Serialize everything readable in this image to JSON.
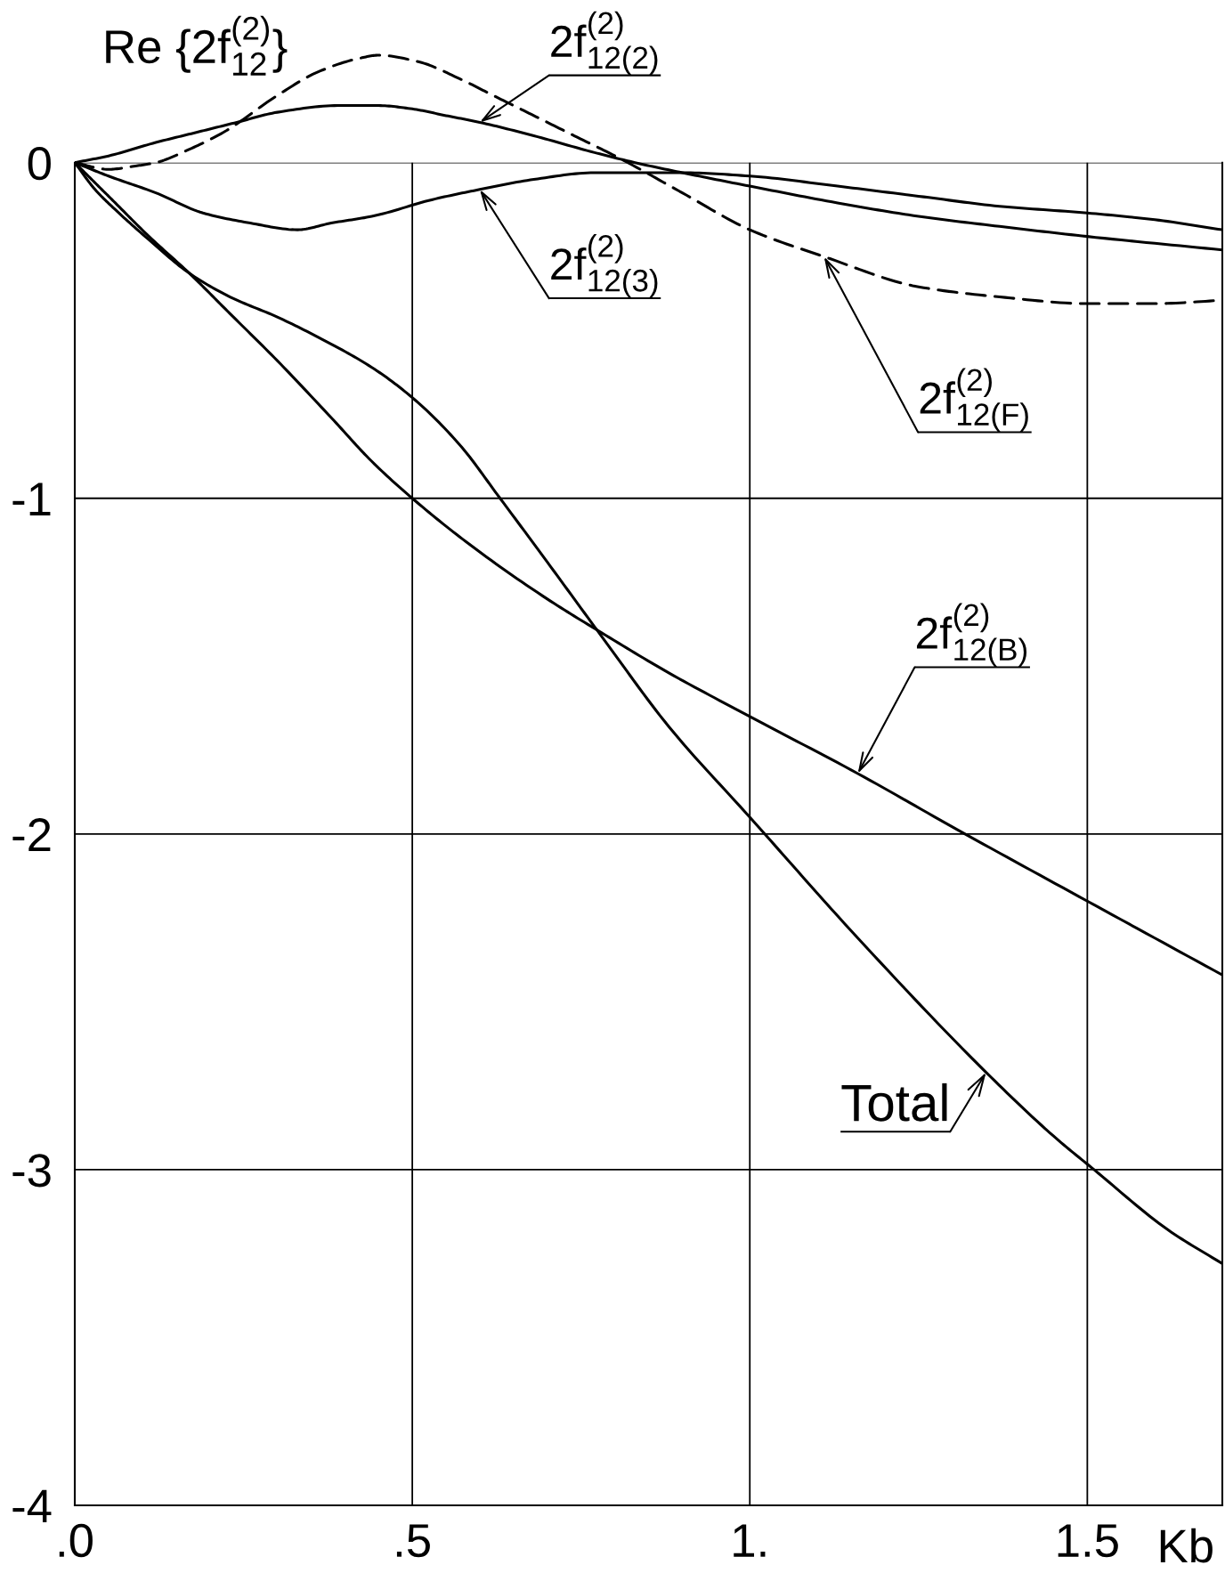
{
  "chart_data": {
    "type": "line",
    "xlabel": "Kb",
    "ylabel": "Re {2f$^{(2)}$$_{12}$}",
    "xlim": [
      0,
      1.7
    ],
    "ylim": [
      -4,
      0.45
    ],
    "xticks": [
      {
        "value": 0,
        "label": ".0"
      },
      {
        "value": 0.5,
        "label": ".5"
      },
      {
        "value": 1,
        "label": "1."
      },
      1.5
    ],
    "yticks": [
      -4,
      -3,
      -2,
      -1,
      0
    ],
    "grid": true,
    "series": [
      {
        "name": "2f$^{(2)}$$_{12(2)}$",
        "color": "#000000",
        "line_style": "solid",
        "x": [
          0,
          0.05,
          0.12,
          0.18,
          0.24,
          0.3,
          0.39,
          0.45,
          0.5,
          0.55,
          0.6,
          0.68,
          0.77,
          0.83,
          0.9,
          1.0,
          1.13,
          1.25,
          1.37,
          1.5,
          1.7
        ],
        "values": [
          0,
          0.02,
          0.06,
          0.09,
          0.12,
          0.15,
          0.17,
          0.17,
          0.16,
          0.14,
          0.12,
          0.08,
          0.03,
          0.0,
          -0.03,
          -0.07,
          -0.12,
          -0.16,
          -0.19,
          -0.22,
          -0.26
        ]
      },
      {
        "name": "2f$^{(2)}$$_{12(3)}$",
        "color": "#000000",
        "line_style": "solid",
        "x": [
          0,
          0.05,
          0.12,
          0.19,
          0.26,
          0.33,
          0.38,
          0.44,
          0.53,
          0.6,
          0.68,
          0.77,
          0.9,
          1.0,
          1.13,
          1.25,
          1.37,
          1.5,
          1.6,
          1.7
        ],
        "values": [
          0,
          -0.04,
          -0.09,
          -0.15,
          -0.18,
          -0.2,
          -0.18,
          -0.16,
          -0.11,
          -0.08,
          -0.05,
          -0.03,
          -0.03,
          -0.04,
          -0.07,
          -0.1,
          -0.13,
          -0.15,
          -0.17,
          -0.2
        ]
      },
      {
        "name": "2f$^{(2)}$$_{12(F)}$",
        "color": "#000000",
        "line_style": "dashed",
        "x": [
          0,
          0.05,
          0.09,
          0.12,
          0.17,
          0.22,
          0.3,
          0.36,
          0.42,
          0.45,
          0.51,
          0.57,
          0.62,
          0.68,
          0.74,
          0.81,
          0.9,
          1.0,
          1.11,
          1.25,
          1.37,
          1.5,
          1.6,
          1.7
        ],
        "values": [
          0,
          -0.02,
          -0.01,
          0.0,
          0.04,
          0.09,
          0.2,
          0.27,
          0.31,
          0.32,
          0.3,
          0.25,
          0.2,
          0.14,
          0.08,
          0.01,
          -0.09,
          -0.2,
          -0.28,
          -0.37,
          -0.4,
          -0.42,
          -0.42,
          -0.41
        ]
      },
      {
        "name": "2f$^{(2)}$$_{12(B)}$",
        "color": "#000000",
        "line_style": "solid",
        "x": [
          0,
          0.03,
          0.06,
          0.11,
          0.17,
          0.23,
          0.3,
          0.38,
          0.44,
          0.5,
          0.58,
          0.7,
          0.78,
          0.88,
          1.0,
          1.16,
          1.31,
          1.5,
          1.7
        ],
        "values": [
          0,
          -0.06,
          -0.12,
          -0.22,
          -0.33,
          -0.45,
          -0.59,
          -0.76,
          -0.89,
          -1.0,
          -1.13,
          -1.3,
          -1.4,
          -1.52,
          -1.65,
          -1.82,
          -1.99,
          -2.2,
          -2.42
        ]
      },
      {
        "name": "Total",
        "color": "#000000",
        "line_style": "solid",
        "x": [
          0,
          0.03,
          0.06,
          0.11,
          0.17,
          0.23,
          0.3,
          0.37,
          0.44,
          0.5,
          0.57,
          0.63,
          0.7,
          0.78,
          0.88,
          1.0,
          1.16,
          1.35,
          1.45,
          1.51,
          1.62,
          1.7
        ],
        "values": [
          0,
          -0.08,
          -0.14,
          -0.23,
          -0.33,
          -0.4,
          -0.46,
          -0.53,
          -0.61,
          -0.7,
          -0.84,
          -1.0,
          -1.19,
          -1.41,
          -1.68,
          -1.95,
          -2.31,
          -2.71,
          -2.9,
          -3.0,
          -3.18,
          -3.28
        ]
      }
    ]
  }
}
